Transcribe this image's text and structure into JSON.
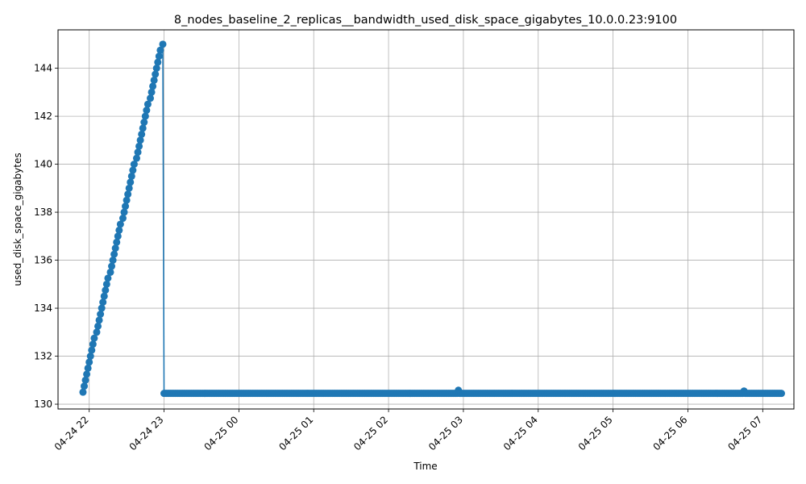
{
  "chart_data": {
    "type": "line",
    "title": "8_nodes_baseline_2_replicas__bandwidth_used_disk_space_gigabytes_10.0.0.23:9100",
    "xlabel": "Time",
    "ylabel": "used_disk_space_gigabytes",
    "x_ticks": [
      {
        "label": "04-24 22",
        "t": "2024-04-24T22:00"
      },
      {
        "label": "04-24 23",
        "t": "2024-04-24T23:00"
      },
      {
        "label": "04-25 00",
        "t": "2024-04-25T00:00"
      },
      {
        "label": "04-25 01",
        "t": "2024-04-25T01:00"
      },
      {
        "label": "04-25 02",
        "t": "2024-04-25T02:00"
      },
      {
        "label": "04-25 03",
        "t": "2024-04-25T03:00"
      },
      {
        "label": "04-25 04",
        "t": "2024-04-25T04:00"
      },
      {
        "label": "04-25 05",
        "t": "2024-04-25T05:00"
      },
      {
        "label": "04-25 06",
        "t": "2024-04-25T06:00"
      },
      {
        "label": "04-25 07",
        "t": "2024-04-25T07:00"
      }
    ],
    "y_ticks": [
      130,
      132,
      134,
      136,
      138,
      140,
      142,
      144
    ],
    "xlim": [
      "2024-04-24T21:35",
      "2024-04-25T07:25"
    ],
    "ylim": [
      129.8,
      145.6
    ],
    "grid": true,
    "color": "#1f77b4",
    "series": [
      {
        "name": "",
        "ramp": {
          "start": "2024-04-24T21:55",
          "end": "2024-04-24T22:59",
          "y_start": 130.5,
          "y_end": 145.0
        },
        "plateau": {
          "start": "2024-04-24T23:00",
          "end": "2024-04-25T07:15",
          "y": 130.45
        },
        "spikes": [
          {
            "t": "2024-04-25T02:56",
            "y": 130.58
          },
          {
            "t": "2024-04-25T06:45",
            "y": 130.55
          }
        ],
        "points": []
      }
    ]
  }
}
